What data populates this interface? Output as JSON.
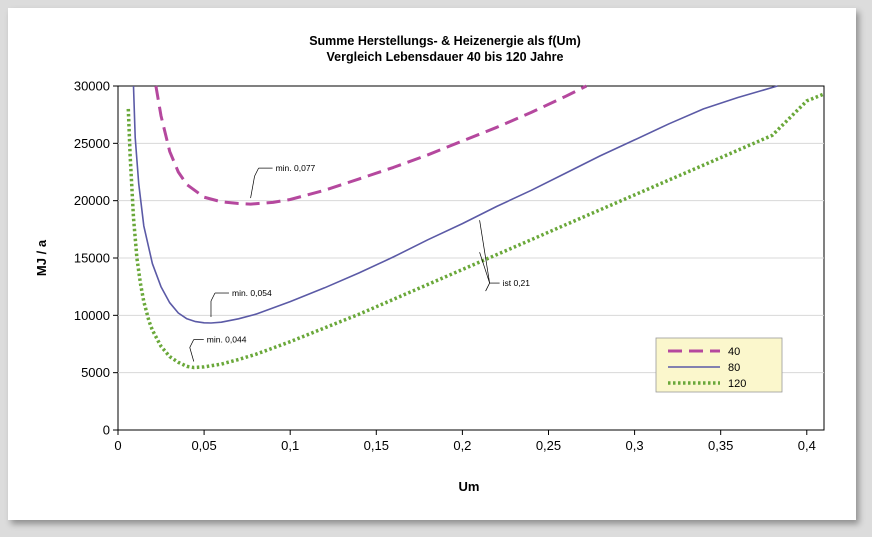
{
  "chart_data": {
    "type": "line",
    "title": "Summe Herstellungs- & Heizenergie als f(Um)",
    "subtitle": "Vergleich Lebensdauer 40 bis 120 Jahre",
    "xlabel": "Um",
    "ylabel": "MJ / a",
    "xlim": [
      0,
      0.41
    ],
    "ylim": [
      0,
      30000
    ],
    "x_ticks": [
      "0",
      "0,05",
      "0,1",
      "0,15",
      "0,2",
      "0,25",
      "0,3",
      "0,35",
      "0,4"
    ],
    "y_ticks": [
      "0",
      "5000",
      "10000",
      "15000",
      "20000",
      "25000",
      "30000"
    ],
    "grid": "horizontal",
    "legend_position": "bottom-right",
    "series": [
      {
        "name": "40",
        "color": "#b5489e",
        "style": "dashed",
        "x": [
          0.022,
          0.025,
          0.03,
          0.035,
          0.04,
          0.05,
          0.06,
          0.07,
          0.077,
          0.09,
          0.1,
          0.12,
          0.14,
          0.16,
          0.18,
          0.2,
          0.22,
          0.24,
          0.26,
          0.272
        ],
        "y": [
          30000,
          27400,
          24300,
          22500,
          21400,
          20300,
          19900,
          19750,
          19700,
          19850,
          20100,
          20900,
          21900,
          22900,
          24000,
          25200,
          26400,
          27700,
          29100,
          30000
        ]
      },
      {
        "name": "80",
        "color": "#5b5aa6",
        "style": "solid",
        "x": [
          0.009,
          0.01,
          0.012,
          0.015,
          0.02,
          0.025,
          0.03,
          0.035,
          0.04,
          0.045,
          0.05,
          0.054,
          0.06,
          0.07,
          0.08,
          0.1,
          0.12,
          0.14,
          0.16,
          0.18,
          0.2,
          0.22,
          0.24,
          0.26,
          0.28,
          0.3,
          0.32,
          0.34,
          0.36,
          0.383
        ],
        "y": [
          30000,
          25500,
          21500,
          17800,
          14500,
          12500,
          11100,
          10200,
          9700,
          9450,
          9350,
          9330,
          9400,
          9700,
          10100,
          11200,
          12400,
          13700,
          15100,
          16600,
          18000,
          19500,
          20900,
          22400,
          23900,
          25300,
          26700,
          28000,
          29000,
          30000
        ]
      },
      {
        "name": "120",
        "color": "#6aa83a",
        "style": "dotted",
        "x": [
          0.006,
          0.007,
          0.009,
          0.011,
          0.013,
          0.015,
          0.018,
          0.02,
          0.025,
          0.03,
          0.035,
          0.04,
          0.044,
          0.05,
          0.06,
          0.07,
          0.08,
          0.1,
          0.12,
          0.14,
          0.16,
          0.18,
          0.2,
          0.22,
          0.24,
          0.26,
          0.28,
          0.3,
          0.32,
          0.34,
          0.36,
          0.38,
          0.4,
          0.41
        ],
        "y": [
          28000,
          24000,
          18500,
          15000,
          12800,
          11200,
          9500,
          8700,
          7300,
          6400,
          5900,
          5550,
          5450,
          5500,
          5750,
          6150,
          6600,
          7700,
          8900,
          10100,
          11400,
          12700,
          14000,
          15300,
          16600,
          17900,
          19200,
          20500,
          21800,
          23100,
          24400,
          25700,
          28700,
          29300
        ]
      }
    ],
    "annotations": [
      {
        "text": "min. 0,077",
        "x": 0.077,
        "y": 19700
      },
      {
        "text": "min. 0,054",
        "x": 0.054,
        "y": 9330
      },
      {
        "text": "min. 0,044",
        "x": 0.044,
        "y": 5450
      },
      {
        "text": "ist 0,21",
        "x": 0.21,
        "y": 17000
      }
    ]
  }
}
